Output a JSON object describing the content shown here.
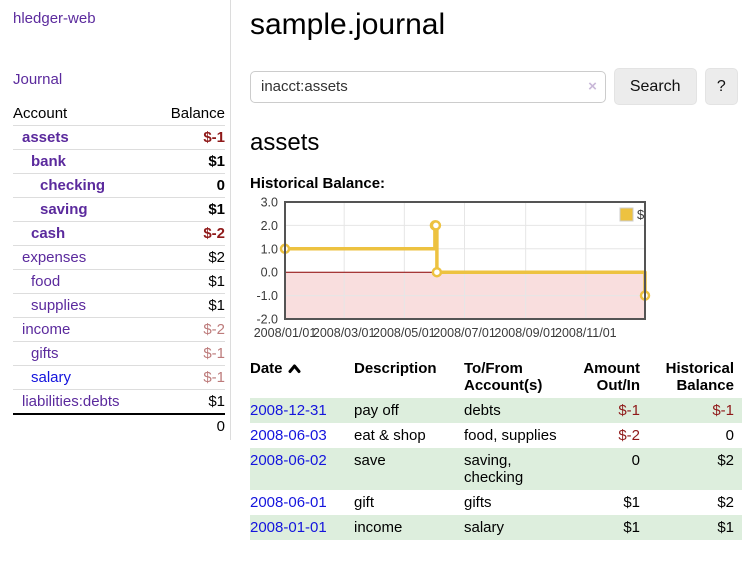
{
  "app": {
    "brand": "hledger-web"
  },
  "sidebar": {
    "journal_label": "Journal",
    "accounts_table": {
      "account_header": "Account",
      "balance_header": "Balance",
      "accounts": [
        {
          "name": "assets",
          "balance": "$-1"
        },
        {
          "name": "bank",
          "balance": "$1"
        },
        {
          "name": "checking",
          "balance": "0"
        },
        {
          "name": "saving",
          "balance": "$1"
        },
        {
          "name": "cash",
          "balance": "$-2"
        },
        {
          "name": "expenses",
          "balance": "$2"
        },
        {
          "name": "food",
          "balance": "$1"
        },
        {
          "name": "supplies",
          "balance": "$1"
        },
        {
          "name": "income",
          "balance": "$-2"
        },
        {
          "name": "gifts",
          "balance": "$-1"
        },
        {
          "name": "salary",
          "balance": "$-1"
        },
        {
          "name": "liabilities:debts",
          "balance": "$1"
        }
      ],
      "total": "0"
    }
  },
  "header": {
    "title": "sample.journal"
  },
  "search": {
    "value": "inacct:assets",
    "clear_icon": "×",
    "button_label": "Search",
    "help_label": "?"
  },
  "main": {
    "account_heading": "assets",
    "chart_title": "Historical Balance:"
  },
  "chart_data": {
    "type": "line",
    "step": true,
    "title": "Historical Balance",
    "legend_position": "top-right",
    "series": [
      {
        "name": "$",
        "color": "#edc240",
        "points": [
          {
            "date": "2008-01-01",
            "day": 0,
            "value": 1
          },
          {
            "date": "2008-06-01",
            "day": 152,
            "value": 2
          },
          {
            "date": "2008-06-02",
            "day": 153,
            "value": 2
          },
          {
            "date": "2008-06-03",
            "day": 154,
            "value": 0
          },
          {
            "date": "2008-12-31",
            "day": 365,
            "value": -1
          }
        ]
      }
    ],
    "x_axis": {
      "range_days": [
        0,
        365
      ],
      "ticks": [
        {
          "label": "2008/01/01",
          "day": 0
        },
        {
          "label": "2008/03/01",
          "day": 60
        },
        {
          "label": "2008/05/01",
          "day": 121
        },
        {
          "label": "2008/07/01",
          "day": 182
        },
        {
          "label": "2008/09/01",
          "day": 244
        },
        {
          "label": "2008/11/01",
          "day": 305
        }
      ]
    },
    "y_axis": {
      "range": [
        -2,
        3
      ],
      "ticks": [
        {
          "label": "3.0",
          "value": 3
        },
        {
          "label": "2.0",
          "value": 2
        },
        {
          "label": "1.0",
          "value": 1
        },
        {
          "label": "0.0",
          "value": 0
        },
        {
          "label": "-1.0",
          "value": -1
        },
        {
          "label": "-2.0",
          "value": -2
        }
      ]
    },
    "colors": {
      "negative_region_fill": "#f9dede",
      "zero_line": "#8b0000",
      "grid": "#e6e6e6",
      "border": "#545454"
    }
  },
  "register": {
    "headers": {
      "date": "Date",
      "description": "Description",
      "accounts": "To/From Account(s)",
      "amount": "Amount Out/In",
      "balance": "Historical Balance"
    },
    "rows": [
      {
        "date": "2008-12-31",
        "description": "pay off",
        "accounts": "debts",
        "amount": "$-1",
        "balance": "$-1"
      },
      {
        "date": "2008-06-03",
        "description": "eat & shop",
        "accounts": "food, supplies",
        "amount": "$-2",
        "balance": "0"
      },
      {
        "date": "2008-06-02",
        "description": "save",
        "accounts": "saving, checking",
        "amount": "0",
        "balance": "$2"
      },
      {
        "date": "2008-06-01",
        "description": "gift",
        "accounts": "gifts",
        "amount": "$1",
        "balance": "$2"
      },
      {
        "date": "2008-01-01",
        "description": "income",
        "accounts": "salary",
        "amount": "$1",
        "balance": "$1"
      }
    ]
  },
  "colors": {
    "link_purple": "#5b2a9d",
    "link_blue": "#1414dd",
    "negative_strong": "#8f1919",
    "negative_faded": "#bd7b7b",
    "row_stripe_green": "#ddeedd",
    "series_gold": "#edc240",
    "button_gray": "#ececec"
  }
}
